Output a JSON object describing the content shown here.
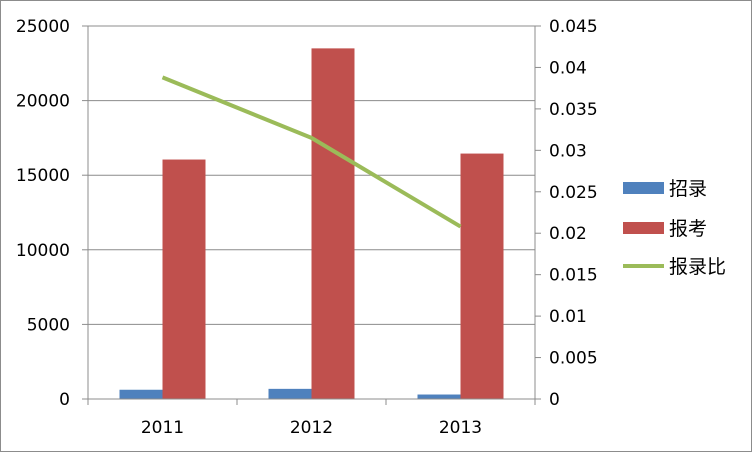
{
  "chart_data": {
    "type": "bar",
    "categories": [
      "2011",
      "2012",
      "2013"
    ],
    "series": [
      {
        "name": "招录",
        "kind": "bar",
        "axis": "left",
        "color": "#4f81bd",
        "values": [
          620,
          680,
          300
        ]
      },
      {
        "name": "报考",
        "kind": "bar",
        "axis": "left",
        "color": "#c0504d",
        "values": [
          16050,
          23500,
          16450
        ]
      },
      {
        "name": "报录比",
        "kind": "line",
        "axis": "right",
        "color": "#9bbb59",
        "values": [
          0.0388,
          0.0315,
          0.0208
        ]
      }
    ],
    "y_left": {
      "min": 0,
      "max": 25000,
      "ticks": [
        "0",
        "5000",
        "10000",
        "15000",
        "20000",
        "25000"
      ]
    },
    "y_right": {
      "min": 0,
      "max": 0.045,
      "ticks": [
        "0",
        "0.005",
        "0.01",
        "0.015",
        "0.02",
        "0.025",
        "0.03",
        "0.035",
        "0.04",
        "0.045"
      ]
    },
    "grid": true,
    "legend_position": "right"
  }
}
